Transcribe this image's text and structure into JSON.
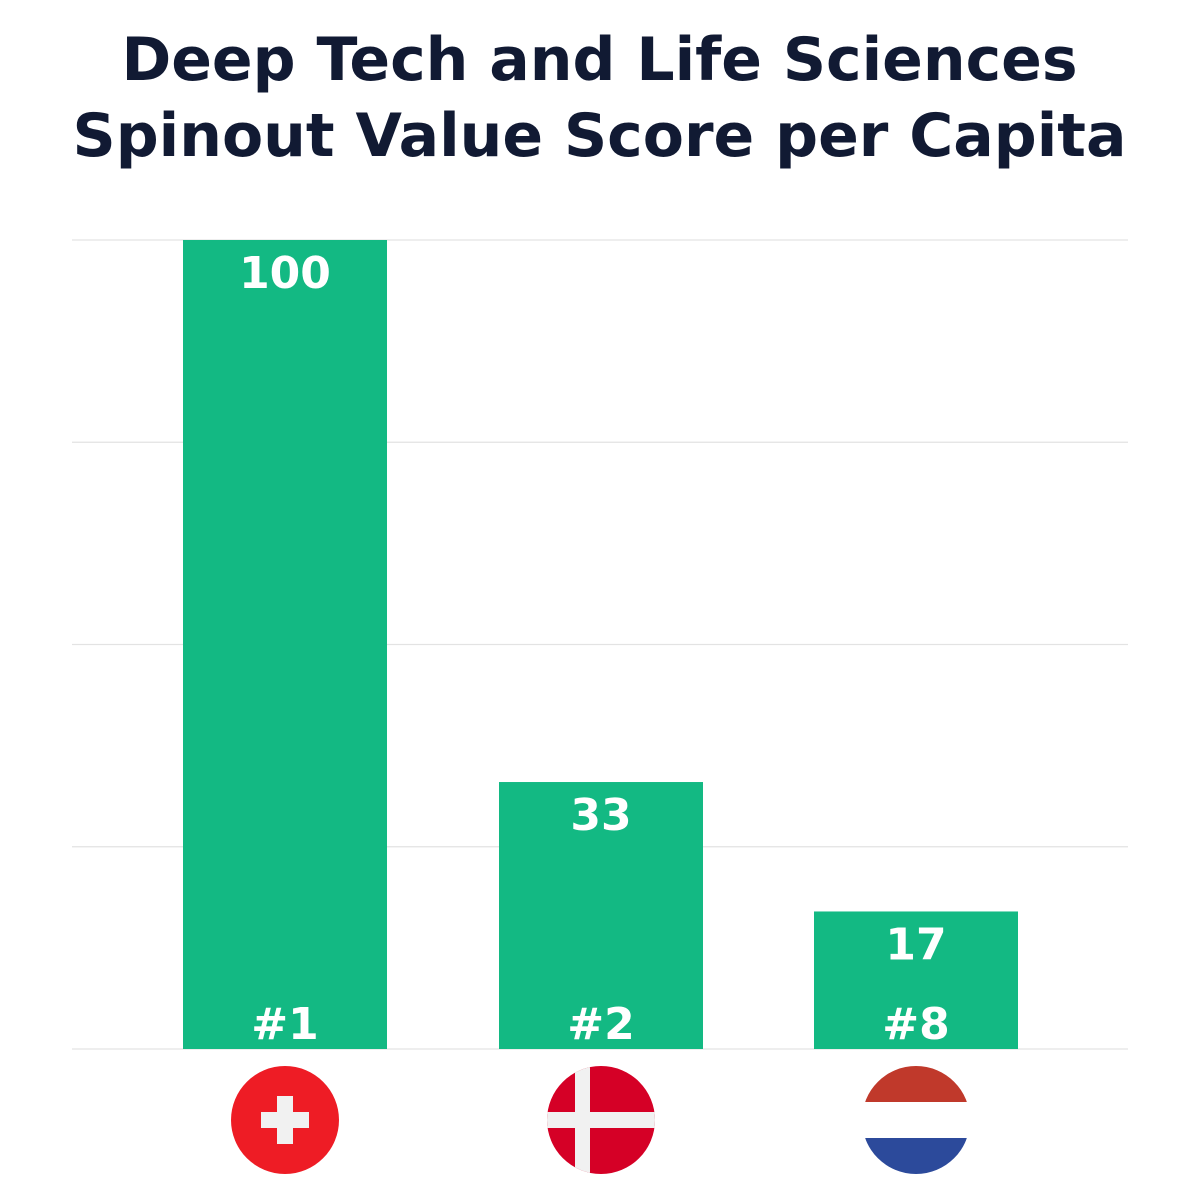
{
  "chart_data": {
    "type": "bar",
    "title_lines": [
      "Deep Tech and Life Sciences",
      "Spinout Value Score per Capita"
    ],
    "categories": [
      "switzerland-flag-icon",
      "denmark-flag-icon",
      "netherlands-flag-icon"
    ],
    "values": [
      100,
      33,
      17
    ],
    "ranks": [
      "#1",
      "#2",
      "#8"
    ],
    "ylim": [
      0,
      100
    ],
    "grid": true,
    "gridlines": [
      0,
      25,
      50,
      75,
      100
    ],
    "xlabel": "",
    "ylabel": "",
    "legend": "none",
    "colors": {
      "bar": "#13b983",
      "title": "#111a33",
      "grid": "#e3e3e3",
      "label": "#ffffff"
    }
  }
}
